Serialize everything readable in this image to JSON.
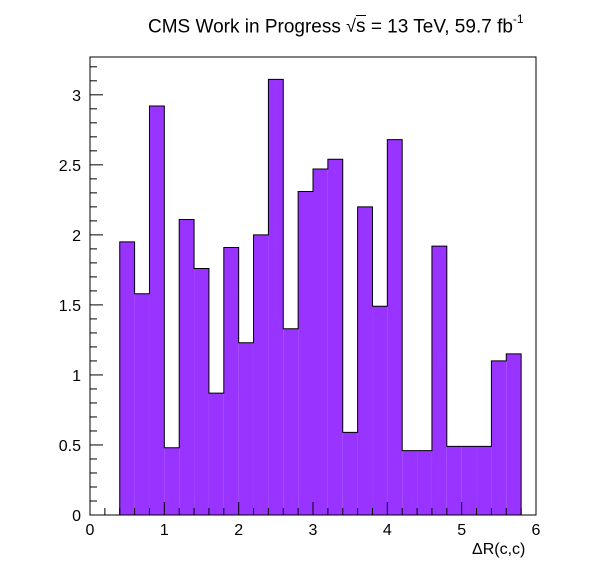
{
  "title": {
    "experiment": "CMS Work in Progress",
    "sqrt_symbol": "√",
    "sqrt_var": "s",
    "energy": "= 13 TeV, 59.7 fb",
    "lumi_exponent": "-1"
  },
  "chart_data": {
    "type": "bar",
    "title": "CMS Work in Progress √s = 13 TeV, 59.7 fb-1",
    "xlabel": "ΔR(c,c)",
    "ylabel": "",
    "xlim": [
      0,
      6
    ],
    "ylim": [
      0,
      3.27
    ],
    "x_ticks": [
      "0",
      "1",
      "2",
      "3",
      "4",
      "5",
      "6"
    ],
    "y_ticks": [
      "0",
      "0.5",
      "1",
      "1.5",
      "2",
      "2.5",
      "3"
    ],
    "bin_edges": [
      0.4,
      0.6,
      0.8,
      1.0,
      1.2,
      1.4,
      1.6,
      1.8,
      2.0,
      2.2,
      2.4,
      2.6,
      2.8,
      3.0,
      3.2,
      3.4,
      3.6,
      3.8,
      4.0,
      4.2,
      4.4,
      4.6,
      4.8,
      5.0,
      5.2,
      5.4,
      5.6,
      5.8
    ],
    "values": [
      1.95,
      1.58,
      2.92,
      0.48,
      2.11,
      1.76,
      0.87,
      1.91,
      1.23,
      2.0,
      3.11,
      1.33,
      2.31,
      2.47,
      2.54,
      0.59,
      2.2,
      1.49,
      2.68,
      0.46,
      0.46,
      1.92,
      0.49,
      0.49,
      0.49,
      1.1,
      1.15
    ],
    "fill_color": "#9933ff",
    "line_color": "#000000",
    "grid": false
  }
}
